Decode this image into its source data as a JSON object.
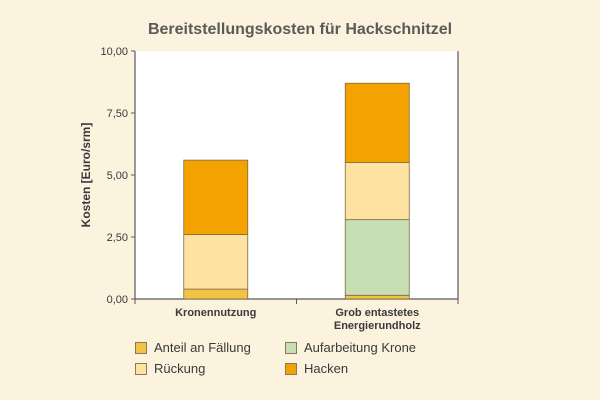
{
  "chart_data": {
    "type": "bar",
    "stacked": true,
    "title": "Bereitstellungskosten für Hackschnitzel",
    "xlabel": "",
    "ylabel": "Kosten [Euro/srm]",
    "ylim": [
      0,
      10
    ],
    "yticks": [
      "0,00",
      "2,50",
      "5,00",
      "7,50",
      "10,00"
    ],
    "categories": [
      [
        "Kronennutzung"
      ],
      [
        "Grob entastetes",
        "Energierundholz"
      ]
    ],
    "series": [
      {
        "name": "Anteil an Fällung",
        "values": [
          0.4,
          0.15
        ],
        "color": "#f3c244"
      },
      {
        "name": "Aufarbeitung Krone",
        "values": [
          0,
          3.05
        ],
        "color": "#c8dfb4"
      },
      {
        "name": "Rückung",
        "values": [
          2.2,
          2.3
        ],
        "color": "#fde2a2"
      },
      {
        "name": "Hacken",
        "values": [
          3.0,
          3.2
        ],
        "color": "#f4a200"
      }
    ],
    "legend_position": "bottom",
    "grid": false
  }
}
